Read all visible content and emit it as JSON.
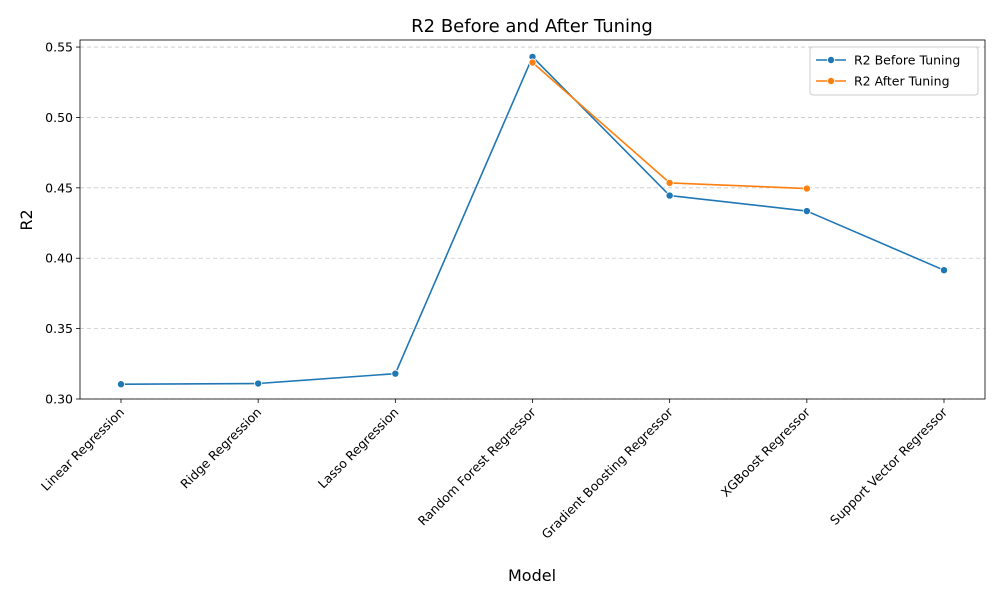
{
  "chart_data": {
    "type": "line",
    "title": "R2 Before and After Tuning",
    "xlabel": "Model",
    "ylabel": "R2",
    "categories": [
      "Linear Regression",
      "Ridge Regression",
      "Lasso Regression",
      "Random Forest Regressor",
      "Gradient Boosting Regressor",
      "XGBoost Regressor",
      "Support Vector Regressor"
    ],
    "series": [
      {
        "name": "R2 Before Tuning",
        "color": "#1f77b4",
        "values": [
          0.3105,
          0.311,
          0.318,
          0.543,
          0.4445,
          0.4335,
          0.3915
        ]
      },
      {
        "name": "R2 After Tuning",
        "color": "#ff7f0e",
        "values": [
          null,
          null,
          null,
          0.539,
          0.4535,
          0.4495,
          null
        ]
      }
    ],
    "ylim": [
      0.3,
      0.555
    ],
    "yticks": [
      "0.30",
      "0.35",
      "0.40",
      "0.45",
      "0.50",
      "0.55"
    ],
    "grid": "y-dashed",
    "legend_position": "top-right"
  }
}
